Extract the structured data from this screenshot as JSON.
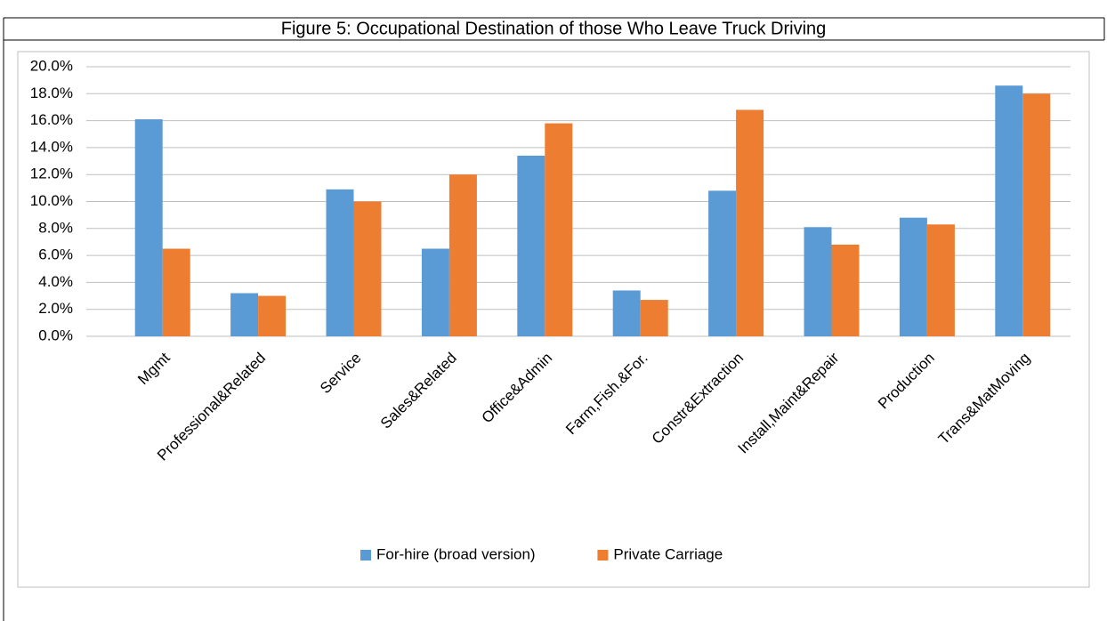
{
  "chart_data": {
    "type": "bar",
    "title": "Figure 5:  Occupational Destination of those Who Leave Truck Driving",
    "categories": [
      "Mgmt",
      "Professional&Related",
      "Service",
      "Sales&Related",
      "Office&Admin",
      "Farm,Fish.&For.",
      "Constr&Extraction",
      "Install,Maint&Repair",
      "Production",
      "Trans&MatMoving"
    ],
    "series": [
      {
        "name": "For-hire (broad version)",
        "color": "#5b9bd5",
        "values": [
          16.1,
          3.2,
          10.9,
          6.5,
          13.4,
          3.4,
          10.8,
          8.1,
          8.8,
          18.6
        ]
      },
      {
        "name": "Private Carriage",
        "color": "#ed7d31",
        "values": [
          6.5,
          3.0,
          10.0,
          12.0,
          15.8,
          2.7,
          16.8,
          6.8,
          8.3,
          18.0
        ]
      }
    ],
    "ylim": [
      0,
      20
    ],
    "yticks": [
      {
        "value": 0,
        "label": "0.0%"
      },
      {
        "value": 2,
        "label": "2.0%"
      },
      {
        "value": 4,
        "label": "4.0%"
      },
      {
        "value": 6,
        "label": "6.0%"
      },
      {
        "value": 8,
        "label": "8.0%"
      },
      {
        "value": 10,
        "label": "10.0%"
      },
      {
        "value": 12,
        "label": "12.0%"
      },
      {
        "value": 14,
        "label": "14.0%"
      },
      {
        "value": 16,
        "label": "16.0%"
      },
      {
        "value": 18,
        "label": "18.0%"
      },
      {
        "value": 20,
        "label": "20.0%"
      }
    ],
    "grid": true,
    "legend": "bottom"
  }
}
